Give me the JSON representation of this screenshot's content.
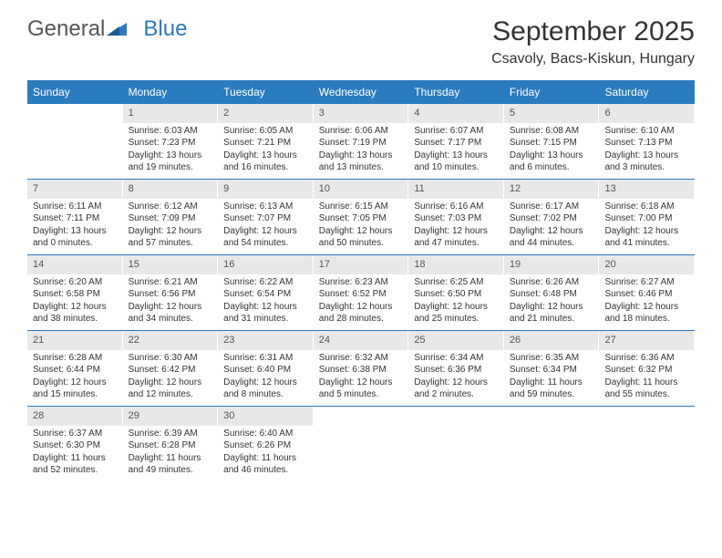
{
  "logo": {
    "part1": "General",
    "part2": "Blue"
  },
  "title": "September 2025",
  "location": "Csavoly, Bacs-Kiskun, Hungary",
  "colors": {
    "header_bg": "#2b7bbf",
    "header_text": "#ffffff",
    "daynum_bg": "#e8e8e8",
    "text": "#333333",
    "logo_gray": "#555555",
    "logo_blue": "#2b7bbf",
    "page_bg": "#ffffff",
    "row_border": "#2b7bbf"
  },
  "typography": {
    "title_fontsize_pt": 22,
    "location_fontsize_pt": 12,
    "dayheader_fontsize_pt": 9,
    "cell_fontsize_pt": 8,
    "font_family": "Arial"
  },
  "day_names": [
    "Sunday",
    "Monday",
    "Tuesday",
    "Wednesday",
    "Thursday",
    "Friday",
    "Saturday"
  ],
  "weeks": [
    [
      {
        "n": "",
        "sr": "",
        "ss": "",
        "dl": ""
      },
      {
        "n": "1",
        "sr": "Sunrise: 6:03 AM",
        "ss": "Sunset: 7:23 PM",
        "dl": "Daylight: 13 hours and 19 minutes."
      },
      {
        "n": "2",
        "sr": "Sunrise: 6:05 AM",
        "ss": "Sunset: 7:21 PM",
        "dl": "Daylight: 13 hours and 16 minutes."
      },
      {
        "n": "3",
        "sr": "Sunrise: 6:06 AM",
        "ss": "Sunset: 7:19 PM",
        "dl": "Daylight: 13 hours and 13 minutes."
      },
      {
        "n": "4",
        "sr": "Sunrise: 6:07 AM",
        "ss": "Sunset: 7:17 PM",
        "dl": "Daylight: 13 hours and 10 minutes."
      },
      {
        "n": "5",
        "sr": "Sunrise: 6:08 AM",
        "ss": "Sunset: 7:15 PM",
        "dl": "Daylight: 13 hours and 6 minutes."
      },
      {
        "n": "6",
        "sr": "Sunrise: 6:10 AM",
        "ss": "Sunset: 7:13 PM",
        "dl": "Daylight: 13 hours and 3 minutes."
      }
    ],
    [
      {
        "n": "7",
        "sr": "Sunrise: 6:11 AM",
        "ss": "Sunset: 7:11 PM",
        "dl": "Daylight: 13 hours and 0 minutes."
      },
      {
        "n": "8",
        "sr": "Sunrise: 6:12 AM",
        "ss": "Sunset: 7:09 PM",
        "dl": "Daylight: 12 hours and 57 minutes."
      },
      {
        "n": "9",
        "sr": "Sunrise: 6:13 AM",
        "ss": "Sunset: 7:07 PM",
        "dl": "Daylight: 12 hours and 54 minutes."
      },
      {
        "n": "10",
        "sr": "Sunrise: 6:15 AM",
        "ss": "Sunset: 7:05 PM",
        "dl": "Daylight: 12 hours and 50 minutes."
      },
      {
        "n": "11",
        "sr": "Sunrise: 6:16 AM",
        "ss": "Sunset: 7:03 PM",
        "dl": "Daylight: 12 hours and 47 minutes."
      },
      {
        "n": "12",
        "sr": "Sunrise: 6:17 AM",
        "ss": "Sunset: 7:02 PM",
        "dl": "Daylight: 12 hours and 44 minutes."
      },
      {
        "n": "13",
        "sr": "Sunrise: 6:18 AM",
        "ss": "Sunset: 7:00 PM",
        "dl": "Daylight: 12 hours and 41 minutes."
      }
    ],
    [
      {
        "n": "14",
        "sr": "Sunrise: 6:20 AM",
        "ss": "Sunset: 6:58 PM",
        "dl": "Daylight: 12 hours and 38 minutes."
      },
      {
        "n": "15",
        "sr": "Sunrise: 6:21 AM",
        "ss": "Sunset: 6:56 PM",
        "dl": "Daylight: 12 hours and 34 minutes."
      },
      {
        "n": "16",
        "sr": "Sunrise: 6:22 AM",
        "ss": "Sunset: 6:54 PM",
        "dl": "Daylight: 12 hours and 31 minutes."
      },
      {
        "n": "17",
        "sr": "Sunrise: 6:23 AM",
        "ss": "Sunset: 6:52 PM",
        "dl": "Daylight: 12 hours and 28 minutes."
      },
      {
        "n": "18",
        "sr": "Sunrise: 6:25 AM",
        "ss": "Sunset: 6:50 PM",
        "dl": "Daylight: 12 hours and 25 minutes."
      },
      {
        "n": "19",
        "sr": "Sunrise: 6:26 AM",
        "ss": "Sunset: 6:48 PM",
        "dl": "Daylight: 12 hours and 21 minutes."
      },
      {
        "n": "20",
        "sr": "Sunrise: 6:27 AM",
        "ss": "Sunset: 6:46 PM",
        "dl": "Daylight: 12 hours and 18 minutes."
      }
    ],
    [
      {
        "n": "21",
        "sr": "Sunrise: 6:28 AM",
        "ss": "Sunset: 6:44 PM",
        "dl": "Daylight: 12 hours and 15 minutes."
      },
      {
        "n": "22",
        "sr": "Sunrise: 6:30 AM",
        "ss": "Sunset: 6:42 PM",
        "dl": "Daylight: 12 hours and 12 minutes."
      },
      {
        "n": "23",
        "sr": "Sunrise: 6:31 AM",
        "ss": "Sunset: 6:40 PM",
        "dl": "Daylight: 12 hours and 8 minutes."
      },
      {
        "n": "24",
        "sr": "Sunrise: 6:32 AM",
        "ss": "Sunset: 6:38 PM",
        "dl": "Daylight: 12 hours and 5 minutes."
      },
      {
        "n": "25",
        "sr": "Sunrise: 6:34 AM",
        "ss": "Sunset: 6:36 PM",
        "dl": "Daylight: 12 hours and 2 minutes."
      },
      {
        "n": "26",
        "sr": "Sunrise: 6:35 AM",
        "ss": "Sunset: 6:34 PM",
        "dl": "Daylight: 11 hours and 59 minutes."
      },
      {
        "n": "27",
        "sr": "Sunrise: 6:36 AM",
        "ss": "Sunset: 6:32 PM",
        "dl": "Daylight: 11 hours and 55 minutes."
      }
    ],
    [
      {
        "n": "28",
        "sr": "Sunrise: 6:37 AM",
        "ss": "Sunset: 6:30 PM",
        "dl": "Daylight: 11 hours and 52 minutes."
      },
      {
        "n": "29",
        "sr": "Sunrise: 6:39 AM",
        "ss": "Sunset: 6:28 PM",
        "dl": "Daylight: 11 hours and 49 minutes."
      },
      {
        "n": "30",
        "sr": "Sunrise: 6:40 AM",
        "ss": "Sunset: 6:26 PM",
        "dl": "Daylight: 11 hours and 46 minutes."
      },
      {
        "n": "",
        "sr": "",
        "ss": "",
        "dl": ""
      },
      {
        "n": "",
        "sr": "",
        "ss": "",
        "dl": ""
      },
      {
        "n": "",
        "sr": "",
        "ss": "",
        "dl": ""
      },
      {
        "n": "",
        "sr": "",
        "ss": "",
        "dl": ""
      }
    ]
  ]
}
